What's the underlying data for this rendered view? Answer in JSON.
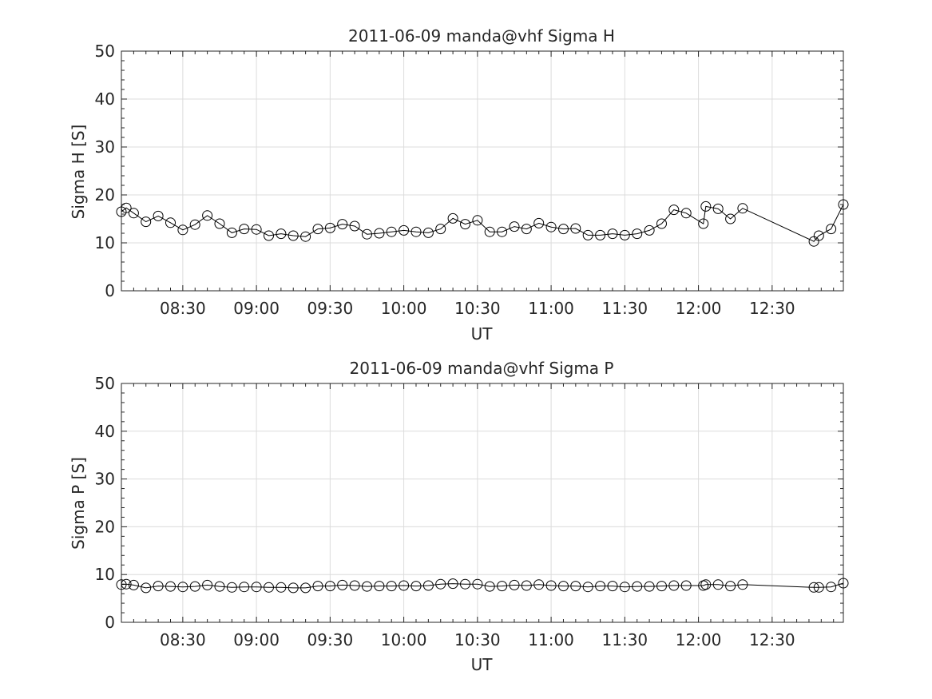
{
  "chart_data": [
    {
      "type": "line",
      "title": "2011-06-09  manda@vhf Sigma H",
      "xlabel": "UT",
      "ylabel": "Sigma H [S]",
      "xlim": [
        "08:05",
        "12:59"
      ],
      "ylim": [
        0,
        50
      ],
      "yticks": [
        0,
        10,
        20,
        30,
        40,
        50
      ],
      "xticks": [
        "08:30",
        "09:00",
        "09:30",
        "10:00",
        "10:30",
        "11:00",
        "11:30",
        "12:00",
        "12:30"
      ],
      "grid": true,
      "marker": "open-circle",
      "line_color": "#000000",
      "x": [
        "08:05",
        "08:07",
        "08:10",
        "08:15",
        "08:20",
        "08:25",
        "08:30",
        "08:35",
        "08:40",
        "08:45",
        "08:50",
        "08:55",
        "09:00",
        "09:05",
        "09:10",
        "09:15",
        "09:20",
        "09:25",
        "09:30",
        "09:35",
        "09:40",
        "09:45",
        "09:50",
        "09:55",
        "10:00",
        "10:05",
        "10:10",
        "10:15",
        "10:20",
        "10:25",
        "10:30",
        "10:35",
        "10:40",
        "10:45",
        "10:50",
        "10:55",
        "11:00",
        "11:05",
        "11:10",
        "11:15",
        "11:20",
        "11:25",
        "11:30",
        "11:35",
        "11:40",
        "11:45",
        "11:50",
        "11:55",
        "12:02",
        "12:03",
        "12:08",
        "12:13",
        "12:18",
        "12:47",
        "12:49",
        "12:54",
        "12:59"
      ],
      "values": [
        16.5,
        17.3,
        16.2,
        14.4,
        15.6,
        14.2,
        12.7,
        13.8,
        15.7,
        14.0,
        12.1,
        12.9,
        12.8,
        11.5,
        11.9,
        11.5,
        11.3,
        12.9,
        13.1,
        13.9,
        13.5,
        11.8,
        12.0,
        12.3,
        12.6,
        12.3,
        12.1,
        12.9,
        15.1,
        13.9,
        14.7,
        12.3,
        12.3,
        13.4,
        12.9,
        14.1,
        13.3,
        12.9,
        13.0,
        11.6,
        11.6,
        11.9,
        11.6,
        11.9,
        12.6,
        14.0,
        16.9,
        16.2,
        14.0,
        17.6,
        17.1,
        15.0,
        17.2,
        10.3,
        11.5,
        12.9,
        18.0
      ]
    },
    {
      "type": "line",
      "title": "2011-06-09  manda@vhf Sigma P",
      "xlabel": "UT",
      "ylabel": "Sigma P [S]",
      "xlim": [
        "08:05",
        "12:59"
      ],
      "ylim": [
        0,
        50
      ],
      "yticks": [
        0,
        10,
        20,
        30,
        40,
        50
      ],
      "xticks": [
        "08:30",
        "09:00",
        "09:30",
        "10:00",
        "10:30",
        "11:00",
        "11:30",
        "12:00",
        "12:30"
      ],
      "grid": true,
      "marker": "open-circle",
      "line_color": "#000000",
      "x": [
        "08:05",
        "08:07",
        "08:10",
        "08:15",
        "08:20",
        "08:25",
        "08:30",
        "08:35",
        "08:40",
        "08:45",
        "08:50",
        "08:55",
        "09:00",
        "09:05",
        "09:10",
        "09:15",
        "09:20",
        "09:25",
        "09:30",
        "09:35",
        "09:40",
        "09:45",
        "09:50",
        "09:55",
        "10:00",
        "10:05",
        "10:10",
        "10:15",
        "10:20",
        "10:25",
        "10:30",
        "10:35",
        "10:40",
        "10:45",
        "10:50",
        "10:55",
        "11:00",
        "11:05",
        "11:10",
        "11:15",
        "11:20",
        "11:25",
        "11:30",
        "11:35",
        "11:40",
        "11:45",
        "11:50",
        "11:55",
        "12:02",
        "12:03",
        "12:08",
        "12:13",
        "12:18",
        "12:47",
        "12:49",
        "12:54",
        "12:59"
      ],
      "values": [
        7.9,
        8.0,
        7.8,
        7.2,
        7.6,
        7.5,
        7.4,
        7.5,
        7.8,
        7.5,
        7.3,
        7.4,
        7.4,
        7.3,
        7.3,
        7.2,
        7.2,
        7.6,
        7.6,
        7.8,
        7.7,
        7.5,
        7.6,
        7.6,
        7.7,
        7.6,
        7.7,
        8.0,
        8.1,
        8.0,
        8.0,
        7.5,
        7.6,
        7.8,
        7.7,
        7.9,
        7.7,
        7.6,
        7.6,
        7.4,
        7.6,
        7.6,
        7.4,
        7.5,
        7.5,
        7.6,
        7.7,
        7.7,
        7.7,
        7.9,
        7.9,
        7.6,
        7.9,
        7.3,
        7.3,
        7.4,
        8.2
      ]
    }
  ]
}
